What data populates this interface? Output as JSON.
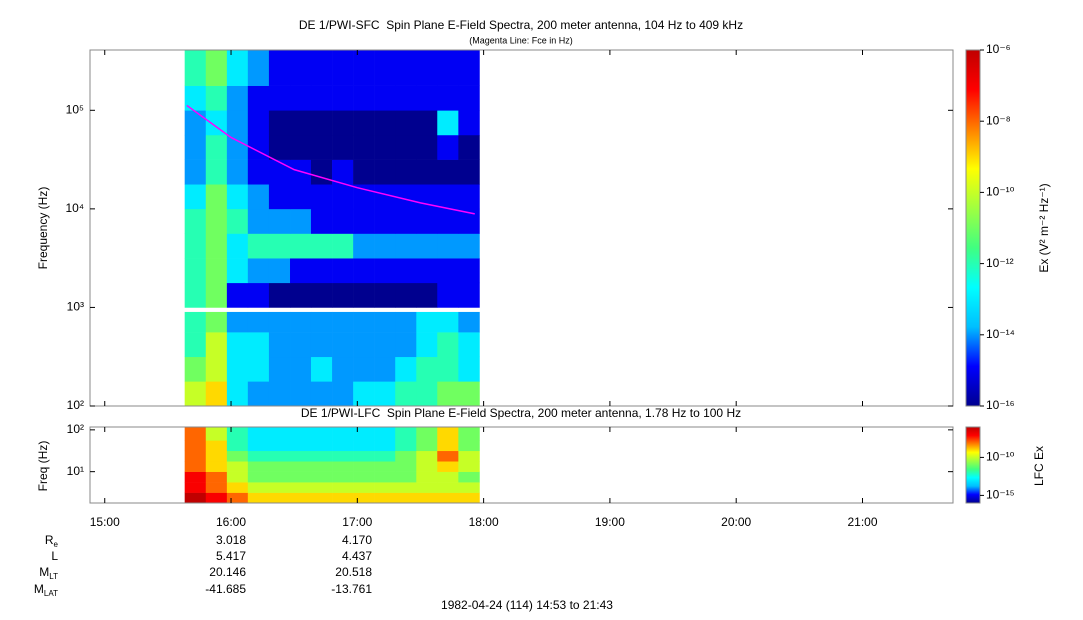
{
  "chart_data": [
    {
      "type": "heatmap",
      "title": "DE 1/PWI-SFC  Spin Plane E-Field Spectra, 200 meter antenna, 104 Hz to 409 kHz",
      "subtitle": "(Magenta Line: Fce in Hz)",
      "y_label": "Frequency (Hz)",
      "colorbar_label": "Ex (V² m⁻² Hz⁻¹)",
      "log_y": true,
      "xlim": [
        14.8833,
        21.7167
      ],
      "xticks": [
        15,
        16,
        17,
        18,
        19,
        20,
        21
      ],
      "ylim": [
        100,
        409000
      ],
      "yticks": [
        {
          "value": 100,
          "label": "10²"
        },
        {
          "value": 1000,
          "label": "10³"
        },
        {
          "value": 10000,
          "label": "10⁴"
        },
        {
          "value": 100000,
          "label": "10⁵"
        }
      ],
      "zlim": [
        1e-16,
        1e-06
      ],
      "zticks": [
        {
          "value": 1e-06,
          "label": "10⁻⁶"
        },
        {
          "value": 1e-08,
          "label": "10⁻⁸"
        },
        {
          "value": 1e-10,
          "label": "10⁻¹⁰"
        },
        {
          "value": 1e-12,
          "label": "10⁻¹²"
        },
        {
          "value": 1e-14,
          "label": "10⁻¹⁴"
        },
        {
          "value": 1e-16,
          "label": "10⁻¹⁶"
        }
      ],
      "colormap": [
        "#00008f",
        "#0000ff",
        "#00bfff",
        "#00ffff",
        "#40ff80",
        "#a0ff40",
        "#ffff00",
        "#ff8000",
        "#ff0000",
        "#c00000"
      ],
      "x_edges": [
        15.633,
        15.8,
        15.967,
        16.133,
        16.3,
        16.467,
        16.633,
        16.8,
        16.967,
        17.133,
        17.3,
        17.467,
        17.633,
        17.8,
        17.967
      ],
      "y_edges": [
        100,
        178,
        316,
        562,
        900,
        1000,
        1778,
        3162,
        5623,
        10000,
        17783,
        31623,
        56234,
        100000,
        177828,
        409000
      ],
      "z": [
        [
          1e-10,
          1e-09,
          1e-13,
          1e-14,
          1e-14,
          1e-14,
          1e-14,
          1e-14,
          1e-13,
          1e-13,
          1e-12,
          1e-12,
          1e-11,
          1e-11
        ],
        [
          1e-11,
          1e-10,
          1e-13,
          1e-13,
          1e-14,
          1e-14,
          1e-13,
          1e-14,
          1e-14,
          1e-14,
          1e-13,
          1e-12,
          1e-12,
          1e-13
        ],
        [
          1e-12,
          1e-10,
          1e-13,
          1e-13,
          1e-14,
          1e-14,
          1e-14,
          1e-14,
          1e-14,
          1e-14,
          1e-14,
          1e-13,
          1e-12,
          1e-13
        ],
        [
          1e-12,
          1e-11,
          1e-14,
          1e-14,
          1e-14,
          1e-14,
          1e-14,
          1e-14,
          1e-14,
          1e-14,
          1e-14,
          1e-13,
          1e-13,
          1e-14
        ],
        [
          null,
          null,
          null,
          null,
          null,
          null,
          null,
          null,
          null,
          null,
          null,
          null,
          null,
          null
        ],
        [
          1e-12,
          1e-11,
          1e-15,
          1e-15,
          1e-16,
          1e-16,
          1e-16,
          1e-16,
          1e-16,
          1e-16,
          1e-16,
          1e-16,
          1e-15,
          1e-15
        ],
        [
          1e-12,
          1e-11,
          1e-13,
          1e-14,
          1e-14,
          1e-15,
          1e-15,
          1e-15,
          1e-15,
          1e-15,
          1e-15,
          1e-15,
          1e-15,
          1e-15
        ],
        [
          1e-12,
          1e-11,
          1e-13,
          1e-12,
          1e-12,
          1e-12,
          1e-12,
          1e-12,
          1e-14,
          1e-14,
          1e-14,
          1e-14,
          1e-14,
          1e-14
        ],
        [
          1e-12,
          1e-11,
          1e-12,
          1e-14,
          1e-14,
          1e-14,
          1e-15,
          1e-15,
          1e-15,
          1e-15,
          1e-15,
          1e-15,
          1e-15,
          1e-15
        ],
        [
          1e-13,
          1e-11,
          1e-13,
          1e-14,
          1e-15,
          1e-15,
          1e-15,
          1e-15,
          1e-15,
          1e-15,
          1e-15,
          1e-15,
          1e-15,
          1e-15
        ],
        [
          1e-14,
          1e-12,
          1e-14,
          1e-15,
          1e-15,
          1e-15,
          1e-16,
          1e-15,
          1e-16,
          1e-16,
          1e-16,
          1e-16,
          1e-16,
          1e-16
        ],
        [
          1e-14,
          1e-12,
          1e-14,
          1e-15,
          1e-16,
          1e-16,
          1e-16,
          1e-16,
          1e-16,
          1e-16,
          1e-16,
          1e-16,
          1e-15,
          1e-16
        ],
        [
          1e-14,
          1e-13,
          1e-14,
          1e-15,
          1e-16,
          1e-16,
          1e-16,
          1e-16,
          1e-16,
          1e-16,
          1e-16,
          1e-16,
          1e-13,
          1e-15
        ],
        [
          1e-13,
          1e-12,
          1e-14,
          1e-15,
          1e-15,
          1e-15,
          1e-15,
          1e-15,
          1e-15,
          1e-15,
          1e-15,
          1e-15,
          1e-15,
          1e-15
        ],
        [
          1e-12,
          1e-11,
          1e-13,
          1e-14,
          1e-15,
          1e-15,
          1e-15,
          1e-15,
          1e-15,
          1e-15,
          1e-15,
          1e-15,
          1e-15,
          1e-15
        ]
      ],
      "line": {
        "color": "#ff00ff",
        "x": [
          15.65,
          16.0,
          16.5,
          17.0,
          17.5,
          17.93
        ],
        "values": [
          112000,
          53000,
          25000,
          16400,
          11500,
          8900
        ]
      }
    },
    {
      "type": "heatmap",
      "title": "DE 1/PWI-LFC  Spin Plane E-Field Spectra, 200 meter antenna, 1.78 Hz to 100 Hz",
      "y_label": "Freq (Hz)",
      "colorbar_label": "LFC Ex",
      "log_y": true,
      "xlim": [
        14.8833,
        21.7167
      ],
      "xticks": [
        {
          "value": 15,
          "label": "15:00"
        },
        {
          "value": 16,
          "label": "16:00"
        },
        {
          "value": 17,
          "label": "17:00"
        },
        {
          "value": 18,
          "label": "18:00"
        },
        {
          "value": 19,
          "label": "19:00"
        },
        {
          "value": 20,
          "label": "20:00"
        },
        {
          "value": 21,
          "label": "21:00"
        }
      ],
      "ylim": [
        1.78,
        117
      ],
      "yticks": [
        {
          "value": 10,
          "label": "10¹"
        },
        {
          "value": 100,
          "label": "10²"
        }
      ],
      "zlim": [
        1e-16,
        1e-06
      ],
      "zticks": [
        {
          "value": 1e-10,
          "label": "10⁻¹⁰"
        },
        {
          "value": 1e-15,
          "label": "10⁻¹⁵"
        }
      ],
      "colormap": [
        "#00008f",
        "#0000ff",
        "#00bfff",
        "#00ffff",
        "#40ff80",
        "#a0ff40",
        "#ffff00",
        "#ff8000",
        "#ff0000",
        "#c00000"
      ],
      "x_edges": [
        15.633,
        15.8,
        15.967,
        16.133,
        16.3,
        16.467,
        16.633,
        16.8,
        16.967,
        17.133,
        17.3,
        17.467,
        17.633,
        17.8,
        17.967
      ],
      "y_edges": [
        1.78,
        3.16,
        5.62,
        10,
        17.78,
        31.62,
        56.23,
        117
      ],
      "z": [
        [
          1e-06,
          1e-07,
          1e-08,
          1e-09,
          1e-09,
          1e-09,
          1e-09,
          1e-09,
          1e-09,
          1e-09,
          1e-09,
          1e-09,
          1e-09,
          1e-09
        ],
        [
          1e-07,
          1e-08,
          1e-09,
          1e-10,
          1e-10,
          1e-10,
          1e-10,
          1e-10,
          1e-10,
          1e-10,
          1e-10,
          1e-10,
          1e-10,
          1e-10
        ],
        [
          1e-07,
          1e-08,
          1e-10,
          1e-11,
          1e-11,
          1e-11,
          1e-11,
          1e-11,
          1e-11,
          1e-11,
          1e-11,
          1e-10,
          1e-10,
          1e-11
        ],
        [
          1e-08,
          1e-09,
          1e-10,
          1e-11,
          1e-11,
          1e-11,
          1e-11,
          1e-11,
          1e-11,
          1e-11,
          1e-11,
          1e-10,
          1e-09,
          1e-10
        ],
        [
          1e-08,
          1e-09,
          1e-11,
          1e-12,
          1e-12,
          1e-12,
          1e-12,
          1e-12,
          1e-12,
          1e-12,
          1e-11,
          1e-10,
          1e-08,
          1e-10
        ],
        [
          1e-08,
          1e-09,
          1e-12,
          1e-13,
          1e-13,
          1e-13,
          1e-13,
          1e-13,
          1e-13,
          1e-13,
          1e-12,
          1e-11,
          1e-09,
          1e-11
        ],
        [
          1e-08,
          1e-10,
          1e-12,
          1e-13,
          1e-13,
          1e-13,
          1e-13,
          1e-13,
          1e-13,
          1e-13,
          1e-12,
          1e-11,
          1e-09,
          1e-11
        ]
      ]
    }
  ],
  "ephemeris": {
    "rows": [
      {
        "label": "R",
        "sub": "e",
        "values": [
          "3.018",
          "4.170"
        ]
      },
      {
        "label": "L",
        "values": [
          "5.417",
          "4.437"
        ]
      },
      {
        "label": "M",
        "sub": "LT",
        "values": [
          "20.146",
          "20.518"
        ]
      },
      {
        "label": "M",
        "sub": "LAT",
        "values": [
          "-41.685",
          "-13.761"
        ]
      }
    ]
  },
  "footer": "1982-04-24 (114) 14:53 to 21:43"
}
